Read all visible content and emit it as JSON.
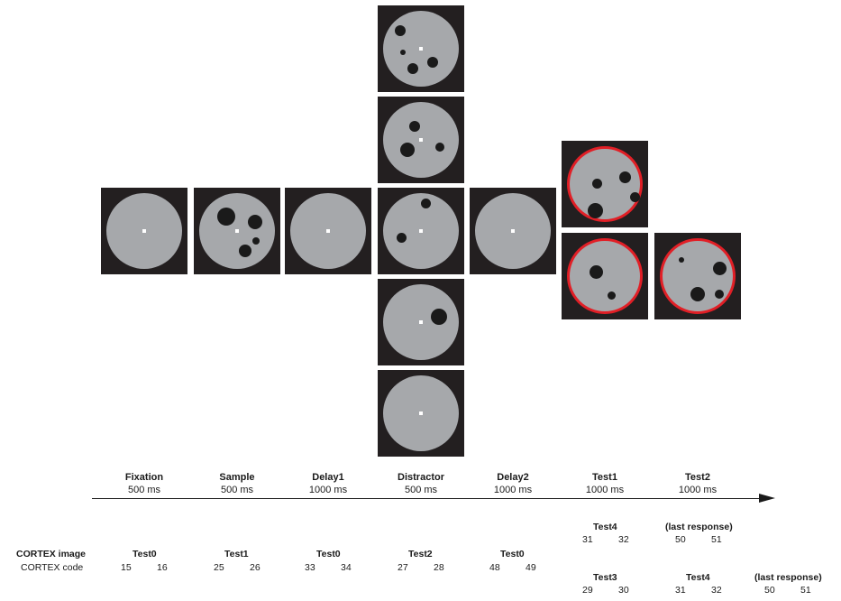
{
  "epochs": [
    {
      "name": "Fixation",
      "duration": "500 ms"
    },
    {
      "name": "Sample",
      "duration": "500 ms"
    },
    {
      "name": "Delay1",
      "duration": "1000 ms"
    },
    {
      "name": "Distractor",
      "duration": "500 ms"
    },
    {
      "name": "Delay2",
      "duration": "1000 ms"
    },
    {
      "name": "Test1",
      "duration": "1000 ms"
    },
    {
      "name": "Test2",
      "duration": "1000 ms"
    }
  ],
  "cortex": {
    "image_label": "CORTEX image",
    "code_label": "CORTEX code",
    "row1": [
      {
        "image": "Test0",
        "codes": [
          "15",
          "16"
        ]
      },
      {
        "image": "Test1",
        "codes": [
          "25",
          "26"
        ]
      },
      {
        "image": "Test0",
        "codes": [
          "33",
          "34"
        ]
      },
      {
        "image": "Test2",
        "codes": [
          "27",
          "28"
        ]
      },
      {
        "image": "Test0",
        "codes": [
          "48",
          "49"
        ]
      }
    ],
    "upper_branch": [
      {
        "image": "Test4",
        "codes": [
          "31",
          "32"
        ]
      },
      {
        "image": "(last response)",
        "codes": [
          "50",
          "51"
        ]
      }
    ],
    "lower_branch": [
      {
        "image": "Test3",
        "codes": [
          "29",
          "30"
        ]
      },
      {
        "image": "Test4",
        "codes": [
          "31",
          "32"
        ]
      },
      {
        "image": "(last response)",
        "codes": [
          "50",
          "51"
        ]
      }
    ]
  },
  "colors": {
    "panel": "#231f20",
    "disc": "#a6a8ab",
    "dot": "#1a1a1a",
    "test_ring": "#e11f26"
  }
}
